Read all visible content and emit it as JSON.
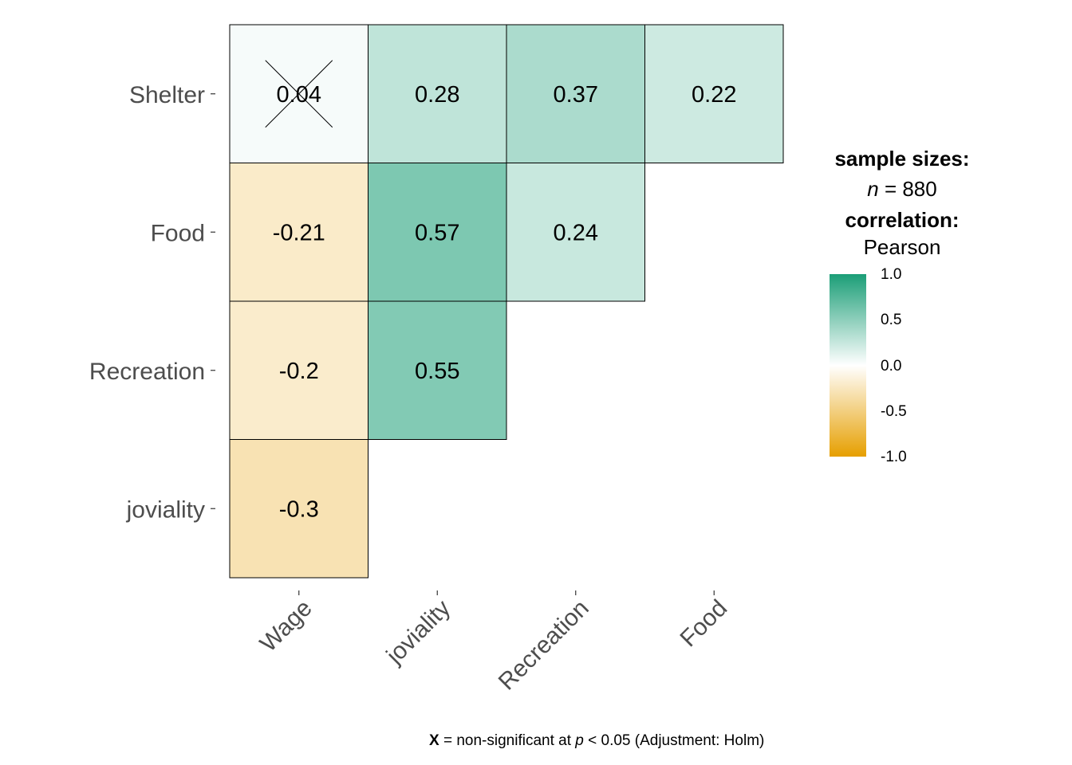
{
  "chart_data": {
    "type": "heatmap",
    "variables_x": [
      "Wage",
      "joviality",
      "Recreation",
      "Food"
    ],
    "variables_y": [
      "Shelter",
      "Food",
      "Recreation",
      "joviality"
    ],
    "cells": [
      {
        "row": "Shelter",
        "col": "Wage",
        "value": 0.04,
        "label": "0.04",
        "non_significant": true
      },
      {
        "row": "Shelter",
        "col": "joviality",
        "value": 0.28,
        "label": "0.28",
        "non_significant": false
      },
      {
        "row": "Shelter",
        "col": "Recreation",
        "value": 0.37,
        "label": "0.37",
        "non_significant": false
      },
      {
        "row": "Shelter",
        "col": "Food",
        "value": 0.22,
        "label": "0.22",
        "non_significant": false
      },
      {
        "row": "Food",
        "col": "Wage",
        "value": -0.21,
        "label": "-0.21",
        "non_significant": false
      },
      {
        "row": "Food",
        "col": "joviality",
        "value": 0.57,
        "label": "0.57",
        "non_significant": false
      },
      {
        "row": "Food",
        "col": "Recreation",
        "value": 0.24,
        "label": "0.24",
        "non_significant": false
      },
      {
        "row": "Recreation",
        "col": "Wage",
        "value": -0.2,
        "label": "-0.2",
        "non_significant": false
      },
      {
        "row": "Recreation",
        "col": "joviality",
        "value": 0.55,
        "label": "0.55",
        "non_significant": false
      },
      {
        "row": "joviality",
        "col": "Wage",
        "value": -0.3,
        "label": "-0.3",
        "non_significant": false
      }
    ],
    "color_scale": {
      "low": "#e69f00",
      "mid": "#ffffff",
      "high": "#1b9e77",
      "limits": [
        -1.0,
        1.0
      ]
    },
    "colorbar_ticks": [
      "1.0",
      "0.5",
      "0.0",
      "-0.5",
      "-1.0"
    ]
  },
  "legend": {
    "sample_sizes_title": "sample sizes:",
    "n_italic": "n",
    "n_rest": " = 880",
    "correlation_title": "correlation:",
    "correlation_type": "Pearson"
  },
  "caption": {
    "x_bold": "X",
    "text_part1": " = non-significant at ",
    "p_italic": "p",
    "text_part2": " < 0.05 (Adjustment: Holm)"
  }
}
